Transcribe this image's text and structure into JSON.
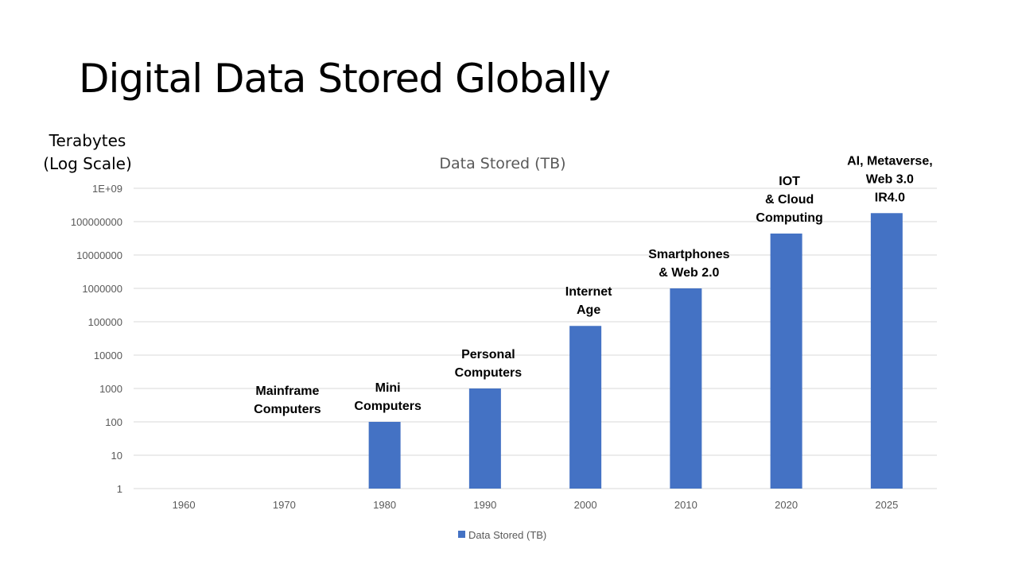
{
  "slide": {
    "title": "Digital Data Stored Globally",
    "axis_caption": [
      "Terabytes",
      "(Log Scale)"
    ]
  },
  "chart_data": {
    "type": "bar",
    "title": "Data Stored (TB)",
    "categories": [
      "1960",
      "1970",
      "1980",
      "1990",
      "2000",
      "2010",
      "2020",
      "2025"
    ],
    "series": [
      {
        "name": "Data Stored (TB)",
        "color": "#4472c4",
        "values": [
          null,
          null,
          100,
          1000,
          75000,
          1000000,
          44000000,
          180000000
        ]
      }
    ],
    "y_scale": "log",
    "ylim": [
      1,
      1000000000
    ],
    "y_ticks": [
      {
        "value": 1,
        "label": "1"
      },
      {
        "value": 10,
        "label": "10"
      },
      {
        "value": 100,
        "label": "100"
      },
      {
        "value": 1000,
        "label": "1000"
      },
      {
        "value": 10000,
        "label": "10000"
      },
      {
        "value": 100000,
        "label": "100000"
      },
      {
        "value": 1000000,
        "label": "1000000"
      },
      {
        "value": 10000000,
        "label": "10000000"
      },
      {
        "value": 100000000,
        "label": "100000000"
      },
      {
        "value": 1000000000,
        "label": "1E+09"
      }
    ],
    "grid": true,
    "legend_position": "bottom",
    "annotations": [
      {
        "category": "1970",
        "lines": [
          "Mainframe",
          "Computers"
        ]
      },
      {
        "category": "1980",
        "lines": [
          "Mini",
          "Computers"
        ]
      },
      {
        "category": "1990",
        "lines": [
          "Personal",
          "Computers"
        ]
      },
      {
        "category": "2000",
        "lines": [
          "Internet",
          "Age"
        ]
      },
      {
        "category": "2010",
        "lines": [
          "Smartphones",
          "& Web 2.0"
        ]
      },
      {
        "category": "2020",
        "lines": [
          "IOT",
          "& Cloud",
          "Computing"
        ]
      },
      {
        "category": "2025",
        "lines": [
          "AI, Metaverse,",
          "Web 3.0",
          "IR4.0"
        ]
      }
    ]
  }
}
